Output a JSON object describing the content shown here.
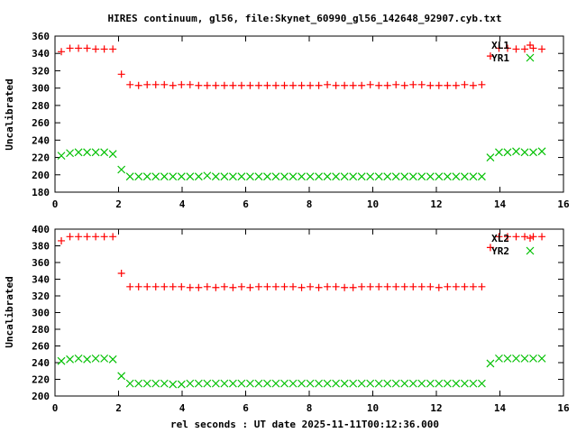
{
  "chart_data": [
    {
      "type": "scatter",
      "title": "HIRES continuum, gl56, file:Skynet_60990_gl56_142648_92907.cyb.txt",
      "xlabel": "",
      "ylabel": "Uncalibrated",
      "xlim": [
        0,
        16
      ],
      "ylim": [
        180,
        360
      ],
      "xticks": [
        0,
        2,
        4,
        6,
        8,
        10,
        12,
        14,
        16
      ],
      "yticks": [
        180,
        200,
        220,
        240,
        260,
        280,
        300,
        320,
        340,
        360
      ],
      "legend_position": "top-right",
      "x": [
        0.2,
        0.47,
        0.74,
        1.01,
        1.28,
        1.55,
        1.82,
        2.09,
        2.36,
        2.63,
        2.9,
        3.17,
        3.44,
        3.71,
        3.98,
        4.25,
        4.52,
        4.79,
        5.06,
        5.33,
        5.6,
        5.87,
        6.14,
        6.41,
        6.68,
        6.95,
        7.22,
        7.49,
        7.76,
        8.03,
        8.3,
        8.57,
        8.84,
        9.11,
        9.38,
        9.65,
        9.92,
        10.19,
        10.46,
        10.73,
        11.0,
        11.27,
        11.54,
        11.81,
        12.08,
        12.35,
        12.62,
        12.89,
        13.16,
        13.43,
        13.7,
        13.97,
        14.24,
        14.51,
        14.78,
        15.05,
        15.32
      ],
      "series": [
        {
          "name": "XL1",
          "marker": "plus",
          "color": "#ff0000",
          "values": [
            342,
            346,
            346,
            346,
            345,
            345,
            345,
            316,
            304,
            303,
            304,
            304,
            304,
            303,
            304,
            304,
            303,
            303,
            303,
            303,
            303,
            303,
            303,
            303,
            303,
            303,
            303,
            303,
            303,
            303,
            303,
            304,
            303,
            303,
            303,
            303,
            304,
            303,
            303,
            304,
            303,
            304,
            304,
            303,
            303,
            303,
            303,
            304,
            303,
            304,
            337,
            346,
            346,
            345,
            345,
            346,
            345
          ]
        },
        {
          "name": "YR1",
          "marker": "cross",
          "color": "#00c000",
          "values": [
            222,
            225,
            226,
            226,
            226,
            226,
            224,
            206,
            198,
            198,
            198,
            198,
            198,
            198,
            198,
            198,
            198,
            199,
            198,
            198,
            198,
            198,
            198,
            198,
            198,
            198,
            198,
            198,
            198,
            198,
            198,
            198,
            198,
            198,
            198,
            198,
            198,
            198,
            198,
            198,
            198,
            198,
            198,
            198,
            198,
            198,
            198,
            198,
            198,
            198,
            220,
            226,
            226,
            227,
            226,
            226,
            227
          ]
        }
      ]
    },
    {
      "type": "scatter",
      "title": "",
      "xlabel": "rel seconds : UT date 2025-11-11T00:12:36.000",
      "ylabel": "Uncalibrated",
      "xlim": [
        0,
        16
      ],
      "ylim": [
        200,
        400
      ],
      "xticks": [
        0,
        2,
        4,
        6,
        8,
        10,
        12,
        14,
        16
      ],
      "yticks": [
        200,
        220,
        240,
        260,
        280,
        300,
        320,
        340,
        360,
        380,
        400
      ],
      "legend_position": "top-right",
      "x": [
        0.2,
        0.47,
        0.74,
        1.01,
        1.28,
        1.55,
        1.82,
        2.09,
        2.36,
        2.63,
        2.9,
        3.17,
        3.44,
        3.71,
        3.98,
        4.25,
        4.52,
        4.79,
        5.06,
        5.33,
        5.6,
        5.87,
        6.14,
        6.41,
        6.68,
        6.95,
        7.22,
        7.49,
        7.76,
        8.03,
        8.3,
        8.57,
        8.84,
        9.11,
        9.38,
        9.65,
        9.92,
        10.19,
        10.46,
        10.73,
        11.0,
        11.27,
        11.54,
        11.81,
        12.08,
        12.35,
        12.62,
        12.89,
        13.16,
        13.43,
        13.7,
        13.97,
        14.24,
        14.51,
        14.78,
        15.05,
        15.32
      ],
      "series": [
        {
          "name": "XL2",
          "marker": "plus",
          "color": "#ff0000",
          "values": [
            386,
            391,
            391,
            391,
            391,
            391,
            391,
            347,
            331,
            331,
            331,
            331,
            331,
            331,
            331,
            330,
            330,
            331,
            330,
            331,
            330,
            331,
            330,
            331,
            331,
            331,
            331,
            331,
            330,
            331,
            330,
            331,
            331,
            330,
            330,
            331,
            331,
            331,
            331,
            331,
            331,
            331,
            331,
            331,
            330,
            331,
            331,
            331,
            331,
            331,
            378,
            391,
            391,
            391,
            391,
            391,
            391
          ]
        },
        {
          "name": "YR2",
          "marker": "cross",
          "color": "#00c000",
          "values": [
            242,
            244,
            245,
            244,
            245,
            245,
            244,
            224,
            215,
            215,
            215,
            215,
            215,
            214,
            214,
            215,
            215,
            215,
            215,
            215,
            215,
            215,
            215,
            215,
            215,
            215,
            215,
            215,
            215,
            215,
            215,
            215,
            215,
            215,
            215,
            215,
            215,
            215,
            215,
            215,
            215,
            215,
            215,
            215,
            215,
            215,
            215,
            215,
            215,
            215,
            239,
            245,
            245,
            245,
            245,
            245,
            245
          ]
        }
      ]
    }
  ]
}
